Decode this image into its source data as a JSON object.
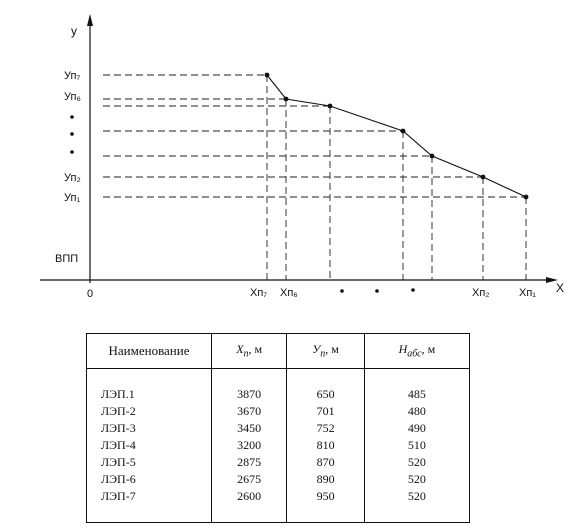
{
  "axes": {
    "y_label": "у",
    "x_label": "Х",
    "origin_label": "0",
    "runway_label": "ВПП"
  },
  "y_marks": [
    {
      "id": "yn7",
      "label": "Уп₇"
    },
    {
      "id": "yn6",
      "label": "Уп₆"
    },
    {
      "id": "yn2",
      "label": "Уп₂"
    },
    {
      "id": "yn1",
      "label": "Уп₁"
    }
  ],
  "x_marks": [
    {
      "id": "xn7",
      "label": "Хп₇"
    },
    {
      "id": "xn6",
      "label": "Хп₆"
    },
    {
      "id": "xn2",
      "label": "Хп₂"
    },
    {
      "id": "xn1",
      "label": "Хп₁"
    }
  ],
  "table": {
    "headers": {
      "name": "Наименование",
      "x_sym": "Х",
      "x_sub": "п",
      "x_unit": ", м",
      "y_sym": "У",
      "y_sub": "п",
      "y_unit": ", м",
      "h_sym": "Н",
      "h_sub": "абс",
      "h_unit": ", м"
    },
    "rows": [
      {
        "name": "ЛЭП.1",
        "x": "3870",
        "y": "650",
        "h": "485"
      },
      {
        "name": "ЛЭП-2",
        "x": "3670",
        "y": "701",
        "h": "480"
      },
      {
        "name": "ЛЭП-3",
        "x": "3450",
        "y": "752",
        "h": "490"
      },
      {
        "name": "ЛЭП-4",
        "x": "3200",
        "y": "810",
        "h": "510"
      },
      {
        "name": "ЛЭП-5",
        "x": "2875",
        "y": "870",
        "h": "520"
      },
      {
        "name": "ЛЭП-6",
        "x": "2675",
        "y": "890",
        "h": "520"
      },
      {
        "name": "ЛЭП-7",
        "x": "2600",
        "y": "950",
        "h": "520"
      }
    ]
  }
}
